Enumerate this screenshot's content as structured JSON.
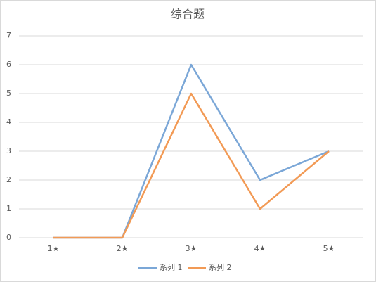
{
  "chart_data": {
    "type": "line",
    "title": "综合题",
    "categories": [
      "1★",
      "2★",
      "3★",
      "4★",
      "5★"
    ],
    "series": [
      {
        "name": "系列 1",
        "color": "#7ba7d7",
        "values": [
          0,
          0,
          6,
          2,
          3
        ]
      },
      {
        "name": "系列 2",
        "color": "#f29a55",
        "values": [
          0,
          0,
          5,
          1,
          3
        ]
      }
    ],
    "ylim": [
      0,
      7
    ],
    "yticks": [
      0,
      1,
      2,
      3,
      4,
      5,
      6,
      7
    ],
    "grid": true,
    "legend": "bottom"
  }
}
